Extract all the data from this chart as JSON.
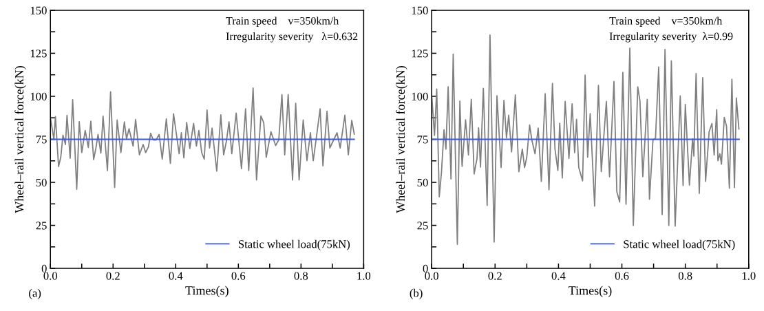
{
  "chart_data": [
    {
      "type": "line",
      "xlabel": "Times(s)",
      "ylabel": "Wheel–rail vertical force(kN)",
      "xlim": [
        0,
        1.0
      ],
      "ylim": [
        0,
        150
      ],
      "xticks": [
        {
          "value": 0,
          "label": "0.0"
        },
        {
          "value": 0.1,
          "label": null
        },
        {
          "value": 0.2,
          "label": "0.2"
        },
        {
          "value": 0.3,
          "label": null
        },
        {
          "value": 0.4,
          "label": "0.4"
        },
        {
          "value": 0.5,
          "label": null
        },
        {
          "value": 0.6,
          "label": "0.6"
        },
        {
          "value": 0.7,
          "label": null
        },
        {
          "value": 0.8,
          "label": "0.8"
        },
        {
          "value": 0.9,
          "label": null
        },
        {
          "value": 1.0,
          "label": "1.0"
        }
      ],
      "yticks": [
        0,
        {
          "value": 12.5,
          "label": null
        },
        25,
        {
          "value": 37.5,
          "label": null
        },
        50,
        {
          "value": 62.5,
          "label": null
        },
        75,
        {
          "value": 87.5,
          "label": null
        },
        100,
        {
          "value": 112.5,
          "label": null
        },
        125,
        {
          "value": 137.5,
          "label": null
        },
        150
      ],
      "grid": false,
      "legend": "bottom right",
      "annotations": [
        "Train speed    v=350km/h",
        "Irregularity severity   λ=0.632",
        "(a)"
      ],
      "series": [
        {
          "color": "#808080",
          "x": [
            0.0,
            0.011,
            0.016,
            0.026,
            0.033,
            0.04,
            0.048,
            0.053,
            0.063,
            0.071,
            0.084,
            0.092,
            0.1,
            0.111,
            0.121,
            0.129,
            0.138,
            0.145,
            0.152,
            0.161,
            0.168,
            0.182,
            0.192,
            0.205,
            0.213,
            0.225,
            0.236,
            0.243,
            0.251,
            0.264,
            0.272,
            0.284,
            0.296,
            0.304,
            0.313,
            0.32,
            0.328,
            0.337,
            0.347,
            0.357,
            0.37,
            0.383,
            0.393,
            0.411,
            0.418,
            0.426,
            0.435,
            0.445,
            0.457,
            0.466,
            0.474,
            0.483,
            0.491,
            0.5,
            0.508,
            0.516,
            0.531,
            0.544,
            0.553,
            0.562,
            0.57,
            0.579,
            0.593,
            0.61,
            0.623,
            0.633,
            0.647,
            0.658,
            0.672,
            0.681,
            0.689,
            0.704,
            0.719,
            0.729,
            0.739,
            0.748,
            0.759,
            0.773,
            0.783,
            0.794,
            0.807,
            0.819,
            0.83,
            0.839,
            0.848,
            0.861,
            0.87,
            0.883,
            0.892,
            0.915,
            0.925,
            0.94,
            0.951,
            0.962,
            0.97
          ],
          "values": [
            87.5,
            75.1,
            88.2,
            59.2,
            64.6,
            77.4,
            72.0,
            88.9,
            64.0,
            98.0,
            46.0,
            85.2,
            67.3,
            80.1,
            70.3,
            85.5,
            63.3,
            69.7,
            77.8,
            67.0,
            88.5,
            56.8,
            102.6,
            47.1,
            86.2,
            67.3,
            85.1,
            75.4,
            81.1,
            71.1,
            86.5,
            66.0,
            72.0,
            67.3,
            70.7,
            78.5,
            74.7,
            74.6,
            77.8,
            63.5,
            86.9,
            61.0,
            89.8,
            66.6,
            78.8,
            64.2,
            84.8,
            69.7,
            84.2,
            71.1,
            80.1,
            67.3,
            63.5,
            92.0,
            70.0,
            81.5,
            56.5,
            89.2,
            66.0,
            74.1,
            85.1,
            66.6,
            90.2,
            57.9,
            92.7,
            56.9,
            104.8,
            51.4,
            88.6,
            84.6,
            64.6,
            79.4,
            71.4,
            74.7,
            101.0,
            66.0,
            101.0,
            51.4,
            95.9,
            51.4,
            86.2,
            62.6,
            78.8,
            62.6,
            74.7,
            92.7,
            59.6,
            91.3,
            70.0,
            78.8,
            70.0,
            89.0,
            66.0,
            86.0,
            78.0
          ]
        },
        {
          "name": "Static wheel load(75kN)",
          "color": "#3355ff",
          "x": [
            0.0,
            0.97
          ],
          "values": [
            75,
            75
          ]
        }
      ]
    },
    {
      "type": "line",
      "xlabel": "Times(s)",
      "ylabel": "Wheel–rail vertical force(kN)",
      "xlim": [
        0,
        1.0
      ],
      "ylim": [
        0,
        150
      ],
      "xticks": [
        {
          "value": 0,
          "label": "0.0"
        },
        {
          "value": 0.1,
          "label": null
        },
        {
          "value": 0.2,
          "label": "0.2"
        },
        {
          "value": 0.3,
          "label": null
        },
        {
          "value": 0.4,
          "label": "0.4"
        },
        {
          "value": 0.5,
          "label": null
        },
        {
          "value": 0.6,
          "label": "0.6"
        },
        {
          "value": 0.7,
          "label": null
        },
        {
          "value": 0.8,
          "label": "0.8"
        },
        {
          "value": 0.9,
          "label": null
        },
        {
          "value": 1.0,
          "label": "1.0"
        }
      ],
      "yticks": [
        0,
        {
          "value": 12.5,
          "label": null
        },
        25,
        {
          "value": 37.5,
          "label": null
        },
        50,
        {
          "value": 62.5,
          "label": null
        },
        75,
        {
          "value": 87.5,
          "label": null
        },
        100,
        {
          "value": 112.5,
          "label": null
        },
        125,
        {
          "value": 137.5,
          "label": null
        },
        150
      ],
      "grid": false,
      "legend": "bottom right",
      "annotations": [
        "Train speed    v=350km/h",
        "Irregularity severity  λ=0.99",
        "(b)"
      ],
      "series": [
        {
          "color": "#808080",
          "x": [
            0.0,
            0.009,
            0.016,
            0.024,
            0.031,
            0.039,
            0.045,
            0.052,
            0.061,
            0.068,
            0.081,
            0.089,
            0.096,
            0.107,
            0.116,
            0.125,
            0.134,
            0.143,
            0.148,
            0.154,
            0.163,
            0.175,
            0.184,
            0.197,
            0.206,
            0.219,
            0.228,
            0.236,
            0.243,
            0.252,
            0.264,
            0.275,
            0.286,
            0.293,
            0.3,
            0.309,
            0.316,
            0.326,
            0.336,
            0.346,
            0.358,
            0.37,
            0.381,
            0.389,
            0.398,
            0.404,
            0.412,
            0.421,
            0.433,
            0.443,
            0.451,
            0.457,
            0.464,
            0.476,
            0.484,
            0.492,
            0.5,
            0.514,
            0.526,
            0.535,
            0.551,
            0.561,
            0.575,
            0.584,
            0.593,
            0.603,
            0.613,
            0.625,
            0.636,
            0.65,
            0.657,
            0.666,
            0.68,
            0.687,
            0.698,
            0.706,
            0.716,
            0.727,
            0.736,
            0.748,
            0.756,
            0.768,
            0.784,
            0.793,
            0.8,
            0.813,
            0.823,
            0.827,
            0.834,
            0.844,
            0.855,
            0.864,
            0.875,
            0.884,
            0.891,
            0.899,
            0.903,
            0.909,
            0.914,
            0.923,
            0.93,
            0.939,
            0.947,
            0.955,
            0.961,
            0.969
          ],
          "values": [
            101.2,
            77.3,
            104.2,
            41.6,
            55.9,
            80.6,
            69.3,
            105.5,
            52.0,
            124.5,
            14.0,
            97.2,
            59.3,
            86.3,
            65.9,
            98.2,
            54.9,
            63.9,
            81.7,
            58.9,
            104.6,
            36.6,
            135.6,
            15.3,
            100.3,
            58.6,
            97.6,
            75.9,
            89.0,
            67.7,
            100.8,
            56.2,
            69.3,
            58.6,
            64.6,
            83.3,
            74.6,
            66.6,
            81.5,
            50.6,
            101.5,
            45.7,
            107.5,
            69.3,
            57.0,
            84.3,
            52.6,
            97.0,
            63.9,
            95.6,
            67.3,
            86.6,
            58.6,
            50.9,
            112.3,
            64.6,
            89.9,
            36.2,
            106.3,
            56.2,
            97.0,
            53.3,
            108.6,
            44.6,
            38.6,
            113.9,
            37.3,
            128.0,
            25.0,
            105.5,
            97.2,
            53.3,
            98.2,
            40.2,
            74.6,
            75.7,
            117.0,
            31.3,
            127.2,
            25.0,
            120.6,
            24.6,
            100.2,
            48.2,
            95.2,
            48.4,
            75.3,
            65.3,
            113.2,
            43.6,
            110.8,
            50.6,
            79.3,
            84.2,
            65.9,
            92.2,
            62.6,
            66.6,
            60.6,
            87.7,
            82.6,
            46.6,
            109.9,
            47.0,
            99.0,
            81.0
          ]
        },
        {
          "name": "Static wheel load(75kN)",
          "color": "#3355ff",
          "x": [
            0.0,
            0.97
          ],
          "values": [
            75,
            75
          ]
        }
      ]
    }
  ]
}
